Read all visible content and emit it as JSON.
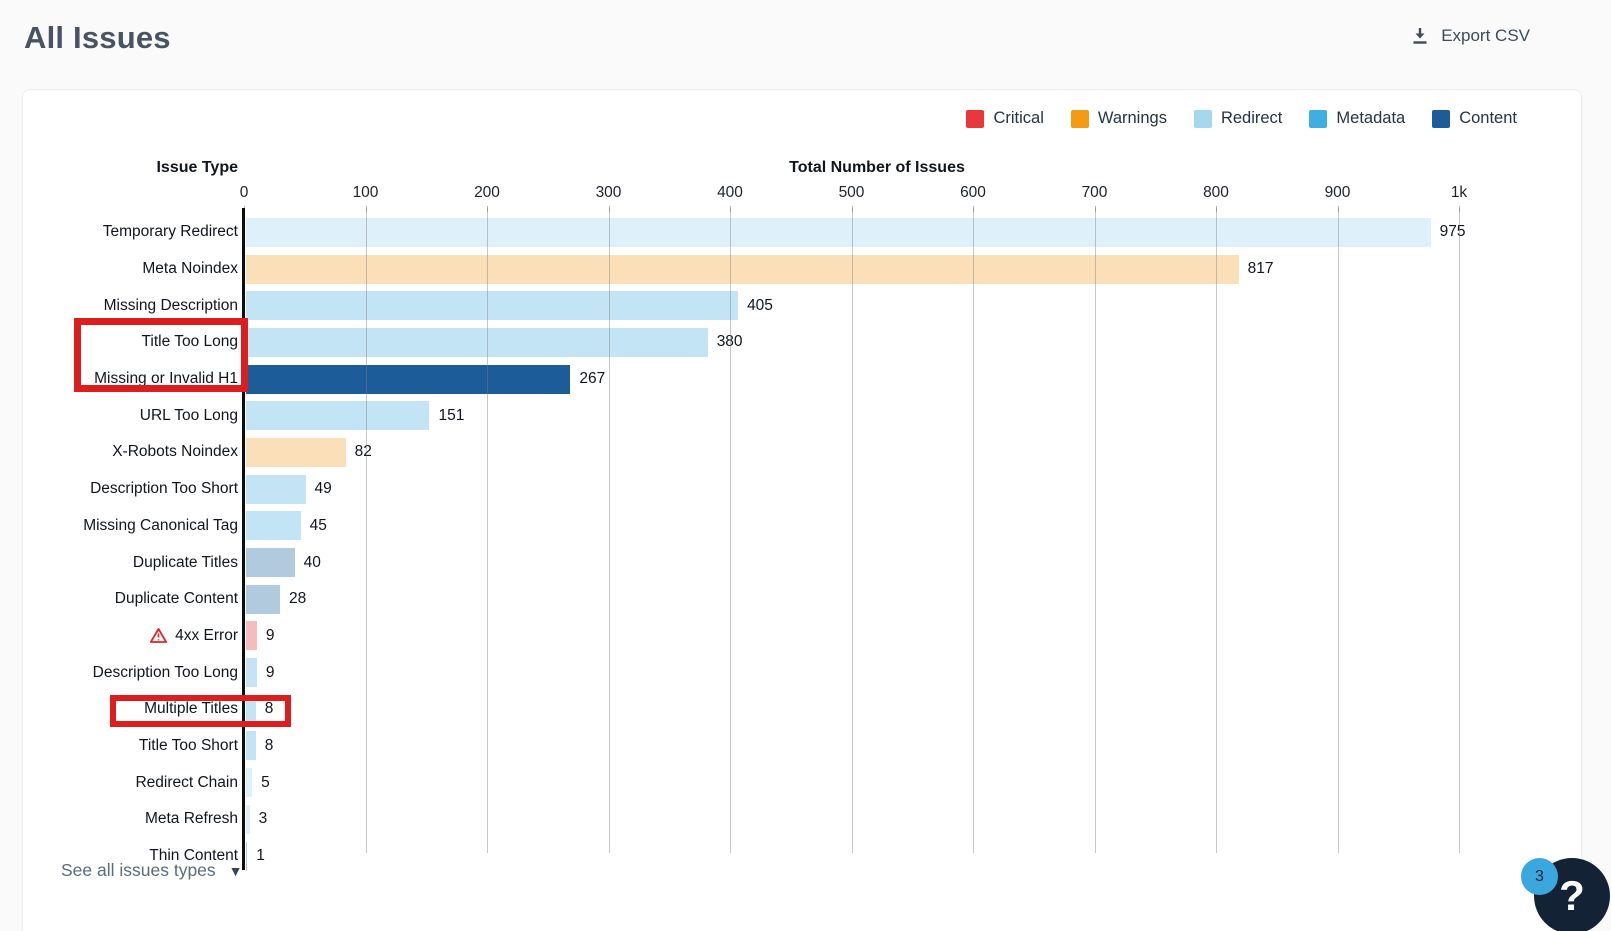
{
  "page": {
    "title": "All Issues"
  },
  "toolbar": {
    "export_label": "Export CSV"
  },
  "legend": [
    {
      "label": "Critical",
      "color": "#e8373d"
    },
    {
      "label": "Warnings",
      "color": "#f49b13"
    },
    {
      "label": "Redirect",
      "color": "#a5d8ee"
    },
    {
      "label": "Metadata",
      "color": "#3fafe0"
    },
    {
      "label": "Content",
      "color": "#1c5d99"
    }
  ],
  "chart_data": {
    "type": "bar",
    "orientation": "horizontal",
    "ylabel": "Issue Type",
    "xlabel": "Total Number of Issues",
    "xlim": [
      0,
      1000
    ],
    "grid": true,
    "x_ticks": [
      {
        "value": 0,
        "label": "0"
      },
      {
        "value": 100,
        "label": "100"
      },
      {
        "value": 200,
        "label": "200"
      },
      {
        "value": 300,
        "label": "300"
      },
      {
        "value": 400,
        "label": "400"
      },
      {
        "value": 500,
        "label": "500"
      },
      {
        "value": 600,
        "label": "600"
      },
      {
        "value": 700,
        "label": "700"
      },
      {
        "value": 800,
        "label": "800"
      },
      {
        "value": 900,
        "label": "900"
      },
      {
        "value": 1000,
        "label": "1k"
      }
    ],
    "category_colors": {
      "Critical": {
        "solid": "#e8373d",
        "faded": "#f6bcbd"
      },
      "Warnings": {
        "solid": "#f49b13",
        "faded": "#fadfb8"
      },
      "Redirect": {
        "solid": "#a5d8ee",
        "faded": "#def0f9"
      },
      "Metadata": {
        "solid": "#3fafe0",
        "faded": "#c2e4f5"
      },
      "Content": {
        "solid": "#1c5d99",
        "faded": "#b2cadd"
      }
    },
    "bars": [
      {
        "label": "Temporary Redirect",
        "value": 975,
        "category": "Redirect"
      },
      {
        "label": "Meta Noindex",
        "value": 817,
        "category": "Warnings"
      },
      {
        "label": "Missing Description",
        "value": 405,
        "category": "Metadata"
      },
      {
        "label": "Title Too Long",
        "value": 380,
        "category": "Metadata",
        "highlighted": true
      },
      {
        "label": "Missing or Invalid H1",
        "value": 267,
        "category": "Content",
        "solid": true,
        "highlighted": true
      },
      {
        "label": "URL Too Long",
        "value": 151,
        "category": "Metadata"
      },
      {
        "label": "X-Robots Noindex",
        "value": 82,
        "category": "Warnings"
      },
      {
        "label": "Description Too Short",
        "value": 49,
        "category": "Metadata"
      },
      {
        "label": "Missing Canonical Tag",
        "value": 45,
        "category": "Metadata"
      },
      {
        "label": "Duplicate Titles",
        "value": 40,
        "category": "Content"
      },
      {
        "label": "Duplicate Content",
        "value": 28,
        "category": "Content"
      },
      {
        "label": "4xx Error",
        "value": 9,
        "category": "Critical",
        "warning_icon": true
      },
      {
        "label": "Description Too Long",
        "value": 9,
        "category": "Metadata"
      },
      {
        "label": "Multiple Titles",
        "value": 8,
        "category": "Metadata",
        "highlighted": true
      },
      {
        "label": "Title Too Short",
        "value": 8,
        "category": "Metadata"
      },
      {
        "label": "Redirect Chain",
        "value": 5,
        "category": "Redirect"
      },
      {
        "label": "Meta Refresh",
        "value": 3,
        "category": "Redirect"
      },
      {
        "label": "Thin Content",
        "value": 1,
        "category": "Content"
      }
    ]
  },
  "annotations": {
    "color": "#dc1e1e",
    "highlight_boxes": [
      {
        "targets": [
          "Title Too Long",
          "Missing or Invalid H1"
        ]
      },
      {
        "targets": [
          "Multiple Titles"
        ]
      }
    ]
  },
  "footer": {
    "see_all_label": "See all issues types"
  },
  "help_widget": {
    "badge_count": "3",
    "icon": "?"
  }
}
